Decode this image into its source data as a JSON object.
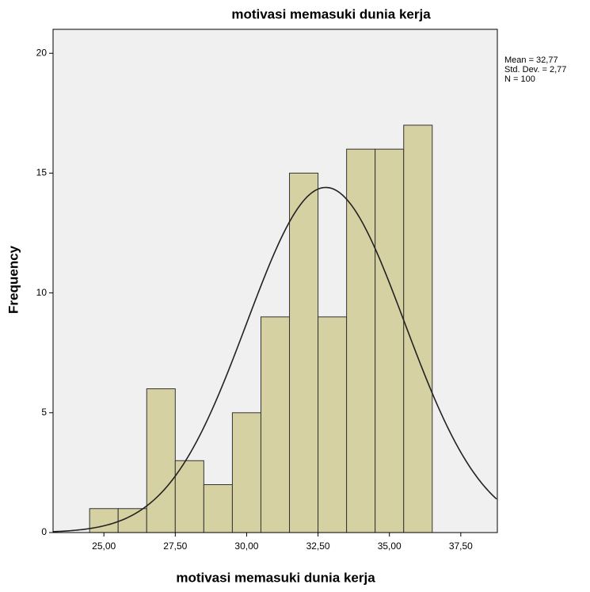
{
  "chart_data": {
    "type": "histogram",
    "title": "motivasi memasuki dunia kerja",
    "x_label": "motivasi memasuki dunia kerja",
    "y_label": "Frequency",
    "bins": [
      24.5,
      25.5,
      26.5,
      27.5,
      28.5,
      29.5,
      30.5,
      31.5,
      32.5,
      33.5,
      34.5,
      35.5,
      36.5
    ],
    "values": [
      1,
      1,
      6,
      3,
      2,
      5,
      9,
      15,
      9,
      16,
      16,
      17
    ],
    "color": "#d6d1a2",
    "xlim": [
      23.22,
      38.78
    ],
    "xticks": [
      {
        "value": 25,
        "label": "25,00"
      },
      {
        "value": 27.5,
        "label": "27,50"
      },
      {
        "value": 30,
        "label": "30,00"
      },
      {
        "value": 32.5,
        "label": "32,50"
      },
      {
        "value": 35,
        "label": "35,00"
      },
      {
        "value": 37.5,
        "label": "37,50"
      }
    ],
    "ylim": [
      0,
      21
    ],
    "yticks": [
      0,
      5,
      10,
      15,
      20
    ],
    "normal_curve": {
      "mean": {
        "value": 32.77,
        "label": "Mean = 32,77"
      },
      "sd": {
        "value": 2.77,
        "label": "Std. Dev. = 2,77"
      },
      "n": {
        "value": 100,
        "label": "N = 100"
      }
    }
  }
}
